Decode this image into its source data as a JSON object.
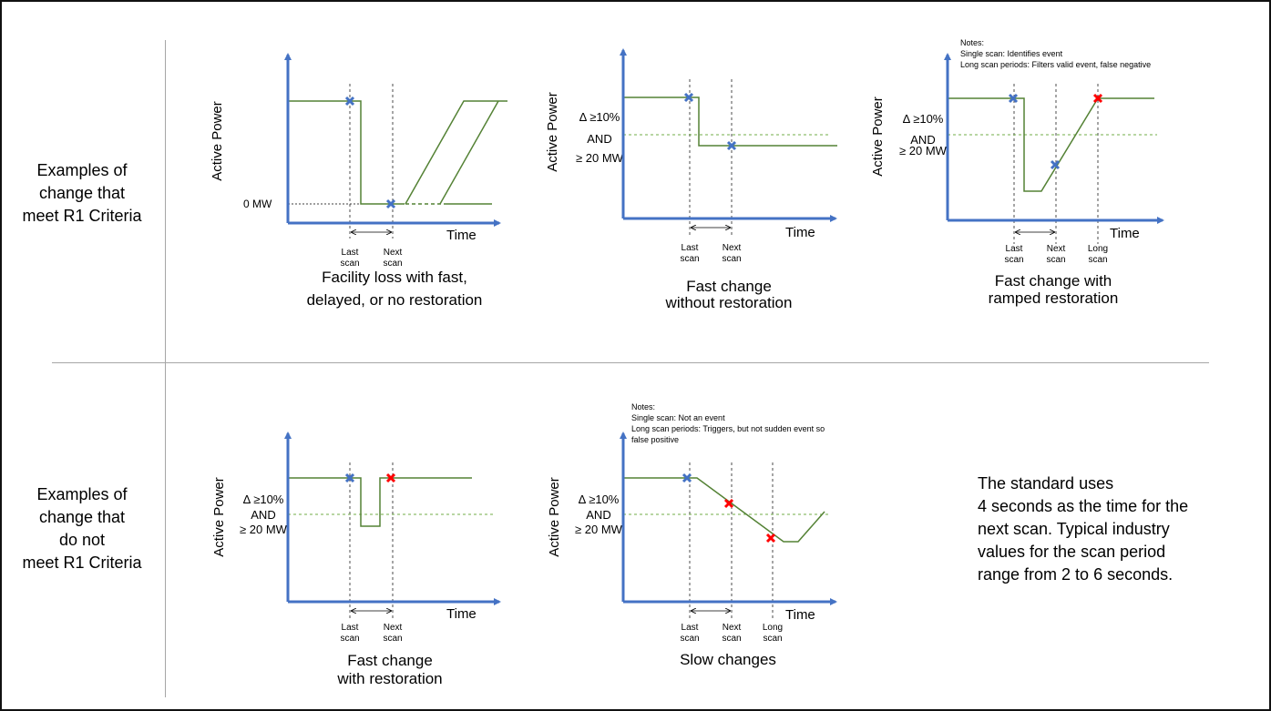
{
  "colors": {
    "axis": "#4472c4",
    "trace": "#548235",
    "threshold": "#70ad47",
    "scan_marker": "#4472c4",
    "event_marker": "#ff0000",
    "divider": "#a6a6a6",
    "frame": "#111111"
  },
  "rows": [
    {
      "label": "Examples of\nchange that\nmeet R1 Criteria"
    },
    {
      "label": "Examples of\nchange that\ndo not\nmeet R1 Criteria"
    }
  ],
  "side_note": "The standard uses\n4 seconds as the time for the\nnext scan. Typical industry\nvalues for the scan period\nrange from 2 to 6 seconds.",
  "common": {
    "y_axis_label": "Active Power",
    "x_axis_label": "Time",
    "last_scan": [
      "Last",
      "scan"
    ],
    "next_scan": [
      "Next",
      "scan"
    ],
    "long_scan": [
      "Long",
      "scan"
    ],
    "threshold": [
      "Δ ≥10%",
      "AND",
      "≥ 20 MW"
    ],
    "zero_mw": "0 MW"
  },
  "panels": [
    {
      "id": "facility-loss",
      "caption": [
        "Facility loss with fast,",
        "delayed, or no restoration"
      ],
      "notes": []
    },
    {
      "id": "fast-change-no-restoration",
      "caption": [
        "Fast change",
        "without restoration"
      ],
      "notes": []
    },
    {
      "id": "fast-change-ramped-restoration",
      "caption": [
        "Fast change with",
        "ramped restoration"
      ],
      "notes": [
        "Notes:",
        "Single scan: Identifies event",
        "Long scan periods: Filters valid event, false negative"
      ]
    },
    {
      "id": "fast-change-with-restoration",
      "caption": [
        "Fast change",
        "with restoration"
      ],
      "notes": []
    },
    {
      "id": "slow-changes",
      "caption": [
        "Slow changes"
      ],
      "notes": [
        "Notes:",
        "Single scan: Not an event",
        "Long scan periods: Triggers, but not sudden event so",
        "false positive"
      ]
    }
  ]
}
